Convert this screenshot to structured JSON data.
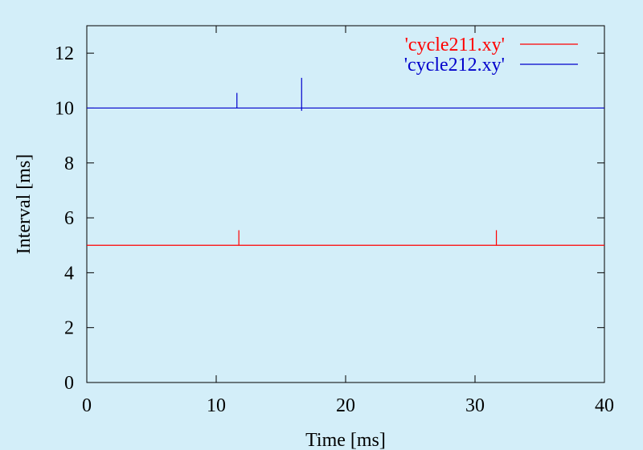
{
  "chart_data": {
    "type": "line",
    "title": "",
    "xlabel": "Time [ms]",
    "ylabel": "Interval [ms]",
    "xlim": [
      0,
      40
    ],
    "ylim": [
      0,
      13
    ],
    "xticks": [
      0,
      10,
      20,
      30,
      40
    ],
    "yticks": [
      0,
      2,
      4,
      6,
      8,
      10,
      12
    ],
    "grid": false,
    "legend_position": "top-right",
    "series": [
      {
        "name": "'cycle211.xy'",
        "color": "#ff0000",
        "base": 5.0,
        "x": [
          0,
          11.75,
          11.75,
          11.75,
          31.65,
          31.65,
          31.65,
          40
        ],
        "y": [
          5.0,
          5.0,
          5.55,
          5.0,
          5.0,
          5.55,
          5.0,
          5.0
        ]
      },
      {
        "name": "'cycle212.xy'",
        "color": "#0000cc",
        "base": 10.0,
        "x": [
          0,
          11.6,
          11.6,
          11.6,
          16.6,
          16.6,
          16.6,
          16.6,
          40
        ],
        "y": [
          10.0,
          10.0,
          10.55,
          10.0,
          10.0,
          11.1,
          9.9,
          10.0,
          10.0
        ]
      }
    ]
  }
}
